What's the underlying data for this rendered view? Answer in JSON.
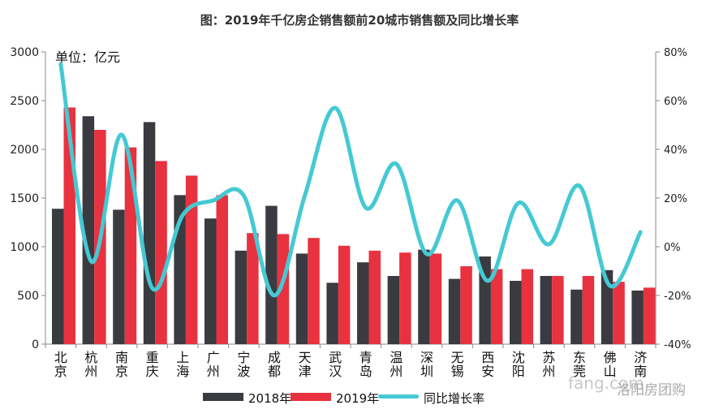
{
  "chart_data": {
    "type": "bar",
    "title": "图：2019年千亿房企销售额前20城市销售额及同比增长率",
    "unit_label": "单位：亿元",
    "categories": [
      "北京",
      "杭州",
      "南京",
      "重庆",
      "上海",
      "广州",
      "宁波",
      "成都",
      "天津",
      "武汉",
      "青岛",
      "温州",
      "深圳",
      "无锡",
      "西安",
      "沈阳",
      "苏州",
      "东莞",
      "佛山",
      "济南"
    ],
    "category_lines": [
      [
        "北",
        "京"
      ],
      [
        "杭",
        "州"
      ],
      [
        "南",
        "京"
      ],
      [
        "重",
        "庆"
      ],
      [
        "上",
        "海"
      ],
      [
        "广",
        "州"
      ],
      [
        "宁",
        "波"
      ],
      [
        "成",
        "都"
      ],
      [
        "天",
        "津"
      ],
      [
        "武",
        "汉"
      ],
      [
        "青",
        "岛"
      ],
      [
        "温",
        "州"
      ],
      [
        "深",
        "圳"
      ],
      [
        "无",
        "锡"
      ],
      [
        "西",
        "安"
      ],
      [
        "沈",
        "阳"
      ],
      [
        "苏",
        "州"
      ],
      [
        "东",
        "莞"
      ],
      [
        "佛",
        "山"
      ],
      [
        "济",
        "南"
      ]
    ],
    "series": [
      {
        "name": "2018年",
        "kind": "bar",
        "axis": "left",
        "color": "#3a3b40",
        "values": [
          1390,
          2340,
          1380,
          2280,
          1530,
          1290,
          960,
          1420,
          930,
          630,
          840,
          700,
          970,
          670,
          900,
          650,
          700,
          560,
          760,
          550
        ]
      },
      {
        "name": "2019年",
        "kind": "bar",
        "axis": "left",
        "color": "#e8323f",
        "values": [
          2430,
          2200,
          2020,
          1880,
          1730,
          1530,
          1140,
          1130,
          1090,
          1010,
          960,
          940,
          930,
          800,
          770,
          770,
          700,
          700,
          640,
          580
        ]
      },
      {
        "name": "同比增长率",
        "kind": "line",
        "axis": "right",
        "color": "#45c9d3",
        "values": [
          75,
          -6,
          46,
          -17,
          13,
          19,
          21,
          -20,
          21,
          57,
          16,
          34,
          -3,
          19,
          -14,
          18,
          1,
          25,
          -16,
          6
        ]
      }
    ],
    "y_left": {
      "min": 0,
      "max": 3000,
      "ticks": [
        0,
        500,
        1000,
        1500,
        2000,
        2500,
        3000
      ]
    },
    "y_right": {
      "min": -40,
      "max": 80,
      "ticks": [
        -40,
        -20,
        0,
        20,
        40,
        60,
        80
      ],
      "tick_labels": [
        "-40%",
        "-20%",
        "0%",
        "20%",
        "40%",
        "60%",
        "80%"
      ]
    },
    "grid": false,
    "legend_position": "bottom"
  },
  "watermark": {
    "logo": "fang.com",
    "text": "洛阳房团购"
  }
}
